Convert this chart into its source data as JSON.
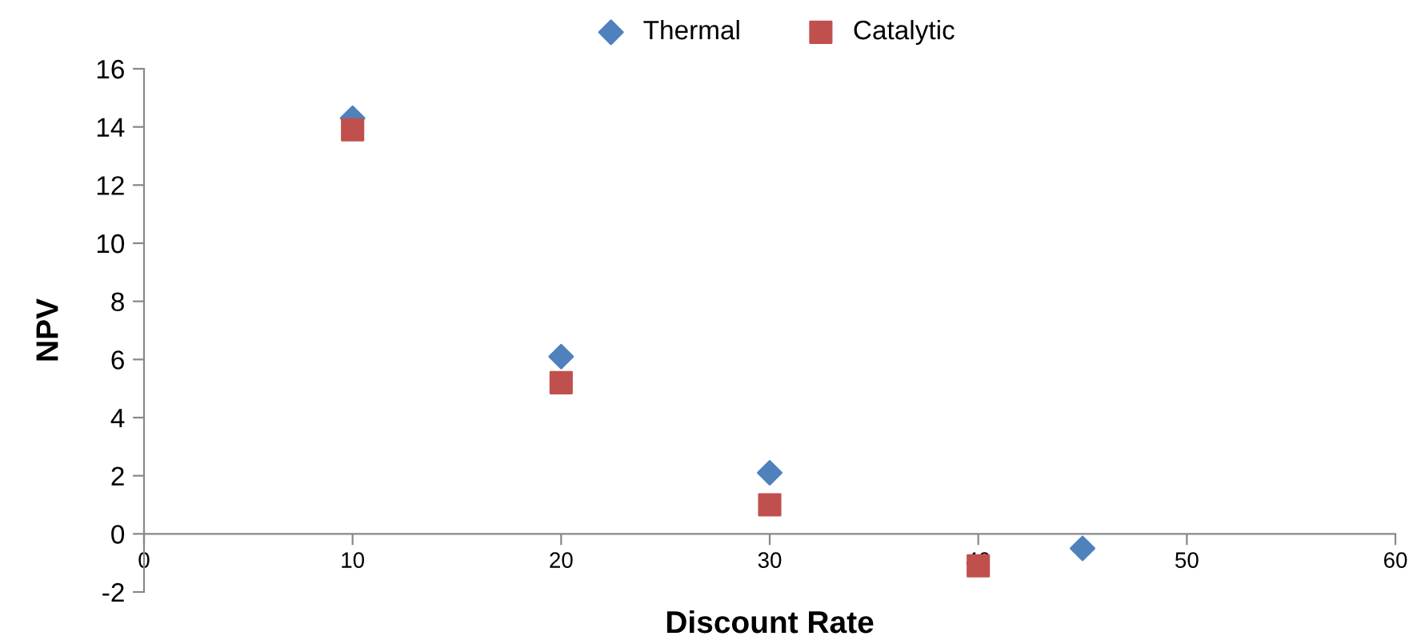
{
  "chart_data": {
    "type": "scatter",
    "xlabel": "Discount Rate",
    "ylabel": "NPV",
    "xlim": [
      0,
      60
    ],
    "xticks": [
      0,
      10,
      20,
      30,
      40,
      50,
      60
    ],
    "ylim": [
      -2,
      16
    ],
    "yticks": [
      -2,
      0,
      2,
      4,
      6,
      8,
      10,
      12,
      14,
      16
    ],
    "legend": "top",
    "grid": false,
    "series": [
      {
        "name": "Thermal",
        "color": "#4f81bd",
        "marker": "diamond",
        "x": [
          10,
          20,
          30,
          45
        ],
        "values": [
          14.3,
          6.1,
          2.1,
          -0.5
        ]
      },
      {
        "name": "Catalytic",
        "color": "#c0504d",
        "marker": "square",
        "x": [
          10,
          20,
          30,
          40
        ],
        "values": [
          13.9,
          5.2,
          1.0,
          -1.1
        ]
      }
    ]
  }
}
